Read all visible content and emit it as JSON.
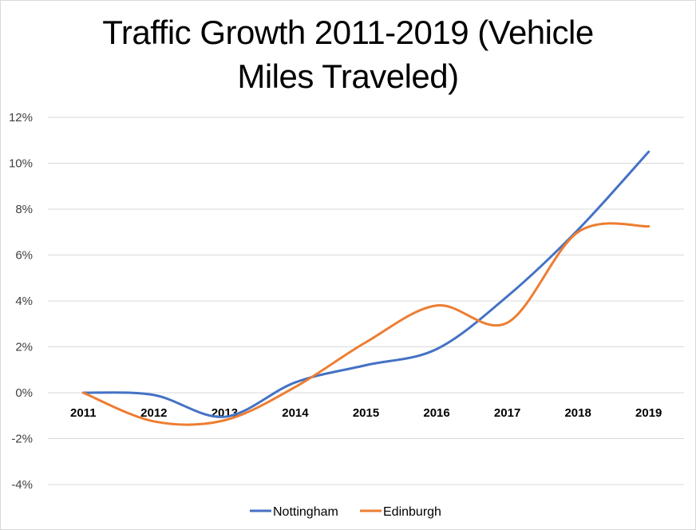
{
  "chart_data": {
    "type": "line",
    "title_lines": [
      "Traffic Growth 2011-2019 (Vehicle",
      "Miles Traveled)"
    ],
    "title": "Traffic Growth 2011-2019 (Vehicle Miles Traveled)",
    "xlabel": "",
    "ylabel": "",
    "categories": [
      "2011",
      "2012",
      "2013",
      "2014",
      "2015",
      "2016",
      "2017",
      "2018",
      "2019"
    ],
    "series": [
      {
        "name": "Nottingham",
        "color": "#4472C4",
        "values": [
          0.0,
          -0.1,
          -1.05,
          0.45,
          1.2,
          1.9,
          4.2,
          7.1,
          10.5
        ]
      },
      {
        "name": "Edinburgh",
        "color": "#ED7D31",
        "values": [
          0.0,
          -1.25,
          -1.2,
          0.25,
          2.2,
          3.8,
          3.05,
          7.0,
          7.25
        ]
      }
    ],
    "ylim": [
      -4,
      12
    ],
    "yticks": [
      12,
      10,
      8,
      6,
      4,
      2,
      0,
      -2,
      -4
    ],
    "ytick_labels": [
      "12%",
      "10%",
      "8%",
      "6%",
      "4%",
      "2%",
      "0%",
      "-2%",
      "-4%"
    ],
    "grid": true,
    "smooth": true,
    "legend_position": "bottom"
  }
}
